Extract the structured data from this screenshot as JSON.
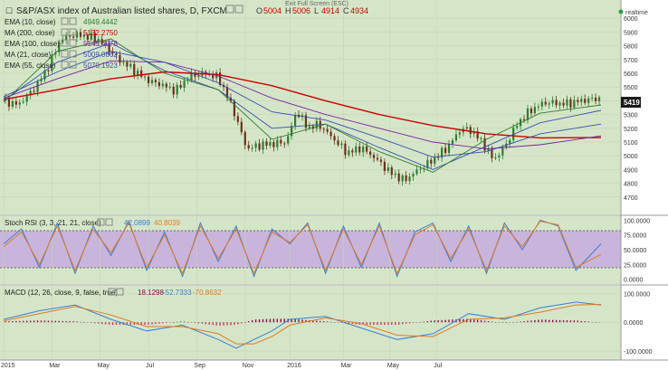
{
  "header": {
    "title": "S&P/ASX index of Australian listed shares, D, FXCM",
    "ohlc_labels": [
      "O",
      "H",
      "L",
      "C"
    ],
    "ohlc_values": [
      "5004",
      "5006",
      "4914",
      "4934"
    ],
    "exit_fullscreen": "Exit Full Screen (ESC)",
    "realtime": "realtime",
    "last_price": "5419"
  },
  "indicators": [
    {
      "label": "EMA (10, close)",
      "value": "4949.4442",
      "color": "#2e7d32"
    },
    {
      "label": "MA (200, close)",
      "value": "5132.2750",
      "color": "#cc0000"
    },
    {
      "label": "EMA (100, close)",
      "value": "5145.4978",
      "color": "#7a1fa2"
    },
    {
      "label": "MA (21, close)",
      "value": "5009.0862",
      "color": "#3a4fb0"
    },
    {
      "label": "EMA (55, close)",
      "value": "5070.1923",
      "color": "#3a4fb0"
    }
  ],
  "stoch": {
    "label": "Stoch RSI (3, 3, 21, 21, close)",
    "k": "42.0899",
    "d": "40.8039"
  },
  "macd": {
    "label": "MACD (12, 26, close, 9, false, true)",
    "v1": "18.1298",
    "v2": "-52.7333",
    "v3": "-70.8632"
  },
  "x_labels": [
    "2015",
    "Mar",
    "May",
    "Jul",
    "Sep",
    "Nov",
    "2016",
    "Mar",
    "May",
    "Jul"
  ],
  "colors": {
    "bg": "#d5e6c8",
    "up": "#2e7d32",
    "down": "#6d2f1a",
    "band": "#c9b4dc",
    "k": "#3a7fd6",
    "d": "#e07b22",
    "hist_pos": "#8b0a50",
    "hist_neg": "#cc3366"
  },
  "chart_data": [
    {
      "type": "line",
      "title": "S&P/ASX index of Australian listed shares, D, FXCM",
      "ylim": [
        4600,
        6100
      ],
      "y_ticks": [
        "6000",
        "5900",
        "5800",
        "5700",
        "5600",
        "5500",
        "5400",
        "5300",
        "5200",
        "5100",
        "5000",
        "4900",
        "4800",
        "4700"
      ],
      "series": [
        {
          "name": "Close",
          "x": [
            0,
            8,
            16,
            24,
            32,
            40,
            46,
            52,
            58,
            64,
            70,
            76,
            82,
            88,
            96,
            104,
            112,
            120,
            128,
            136,
            144,
            152,
            158,
            164,
            170,
            176,
            184,
            192,
            200,
            208,
            216,
            224,
            232,
            240,
            248,
            256,
            262,
            268,
            274,
            280,
            286,
            292,
            298,
            304,
            310,
            316,
            322,
            328,
            334
          ],
          "values": [
            5400,
            5370,
            5470,
            5620,
            5850,
            5880,
            5870,
            5850,
            5790,
            5700,
            5650,
            5590,
            5540,
            5520,
            5470,
            5580,
            5600,
            5570,
            5350,
            5050,
            5080,
            5090,
            5100,
            5330,
            5200,
            5230,
            5130,
            5020,
            5060,
            4980,
            4880,
            4820,
            4900,
            4970,
            5060,
            5200,
            5180,
            5090,
            4970,
            5060,
            5210,
            5300,
            5360,
            5390,
            5380,
            5380,
            5400,
            5410,
            5419
          ]
        },
        {
          "name": "MA (200, close)",
          "x": [
            0,
            30,
            60,
            90,
            120,
            150,
            180,
            210,
            240,
            270,
            300,
            334
          ],
          "values": [
            5410,
            5480,
            5560,
            5610,
            5590,
            5510,
            5400,
            5300,
            5220,
            5160,
            5130,
            5132
          ]
        },
        {
          "name": "EMA (100, close)",
          "x": [
            0,
            30,
            60,
            90,
            120,
            150,
            180,
            210,
            240,
            270,
            300,
            334
          ],
          "values": [
            5420,
            5560,
            5690,
            5680,
            5580,
            5420,
            5300,
            5200,
            5100,
            5050,
            5080,
            5145
          ]
        },
        {
          "name": "EMA (55, close)",
          "x": [
            0,
            30,
            60,
            90,
            120,
            150,
            180,
            210,
            240,
            270,
            300,
            334
          ],
          "values": [
            5430,
            5610,
            5760,
            5680,
            5530,
            5320,
            5260,
            5130,
            4990,
            5030,
            5160,
            5230
          ]
        },
        {
          "name": "MA (21, close)",
          "x": [
            0,
            30,
            60,
            90,
            120,
            150,
            180,
            210,
            240,
            270,
            300,
            334
          ],
          "values": [
            5400,
            5680,
            5820,
            5620,
            5480,
            5200,
            5230,
            5060,
            4900,
            5070,
            5240,
            5330
          ]
        },
        {
          "name": "EMA (10, close)",
          "x": [
            0,
            30,
            60,
            90,
            120,
            150,
            180,
            210,
            240,
            270,
            300,
            334
          ],
          "values": [
            5390,
            5760,
            5850,
            5600,
            5480,
            5120,
            5230,
            5030,
            4880,
            5120,
            5310,
            5370
          ]
        }
      ]
    },
    {
      "type": "line",
      "title": "Stoch RSI (3, 3, 21, 21, close)",
      "ylim": [
        -5,
        105
      ],
      "y_ticks": [
        "100.0000",
        "75.0000",
        "50.0000",
        "25.0000",
        "0.0000"
      ],
      "band": [
        20,
        80
      ],
      "series": [
        {
          "name": "K",
          "x": [
            0,
            10,
            20,
            30,
            40,
            50,
            60,
            70,
            80,
            90,
            100,
            110,
            120,
            130,
            140,
            150,
            160,
            170,
            180,
            190,
            200,
            210,
            220,
            230,
            240,
            250,
            260,
            270,
            280,
            290,
            300,
            310,
            320,
            334
          ],
          "values": [
            60,
            85,
            20,
            95,
            10,
            90,
            40,
            98,
            15,
            80,
            5,
            95,
            30,
            90,
            5,
            85,
            60,
            95,
            10,
            90,
            20,
            95,
            5,
            80,
            95,
            30,
            90,
            10,
            95,
            50,
            100,
            90,
            15,
            60
          ]
        },
        {
          "name": "D",
          "x": [
            0,
            10,
            20,
            30,
            40,
            50,
            60,
            70,
            80,
            90,
            100,
            110,
            120,
            130,
            140,
            150,
            160,
            170,
            180,
            190,
            200,
            210,
            220,
            230,
            240,
            250,
            260,
            270,
            280,
            290,
            300,
            310,
            320,
            334
          ],
          "values": [
            55,
            80,
            25,
            90,
            15,
            85,
            45,
            95,
            20,
            75,
            10,
            90,
            35,
            85,
            10,
            80,
            62,
            92,
            15,
            85,
            25,
            90,
            10,
            75,
            92,
            35,
            85,
            15,
            90,
            55,
            98,
            92,
            20,
            42
          ]
        }
      ]
    },
    {
      "type": "line",
      "title": "MACD (12, 26, close, 9, false, true)",
      "ylim": [
        -125,
        120
      ],
      "y_ticks": [
        "100.0000",
        "0.0000",
        "-100.0000"
      ],
      "series": [
        {
          "name": "MACD",
          "x": [
            0,
            20,
            40,
            60,
            80,
            100,
            120,
            130,
            140,
            150,
            160,
            180,
            200,
            220,
            240,
            260,
            280,
            300,
            320,
            334
          ],
          "values": [
            10,
            40,
            60,
            10,
            -30,
            -10,
            -60,
            -90,
            -60,
            -30,
            10,
            20,
            -20,
            -60,
            -40,
            30,
            10,
            50,
            70,
            60
          ]
        },
        {
          "name": "Signal",
          "x": [
            0,
            20,
            40,
            60,
            80,
            100,
            120,
            130,
            140,
            150,
            160,
            180,
            200,
            220,
            240,
            260,
            280,
            300,
            320,
            334
          ],
          "values": [
            5,
            30,
            55,
            25,
            -15,
            -15,
            -40,
            -75,
            -75,
            -50,
            -10,
            15,
            -5,
            -45,
            -50,
            10,
            15,
            35,
            60,
            62
          ]
        }
      ]
    }
  ]
}
